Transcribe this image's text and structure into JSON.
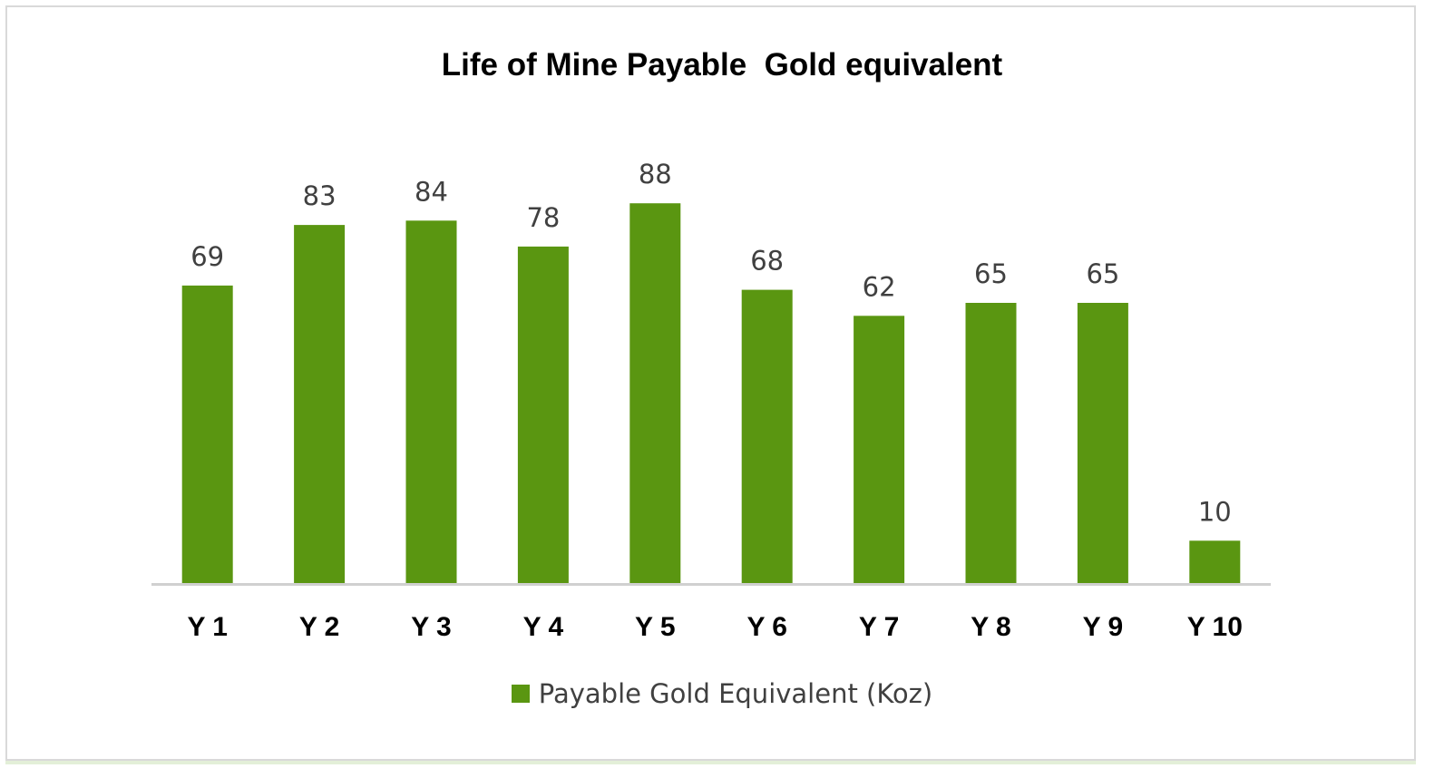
{
  "chart_data": {
    "type": "bar",
    "title": "Life of Mine Payable  Gold equivalent",
    "categories": [
      "Y 1",
      "Y 2",
      "Y 3",
      "Y 4",
      "Y 5",
      "Y 6",
      "Y 7",
      "Y 8",
      "Y 9",
      "Y 10"
    ],
    "series": [
      {
        "name": "Payable Gold Equivalent (Koz)",
        "values": [
          69,
          83,
          84,
          78,
          88,
          68,
          62,
          65,
          65,
          10
        ],
        "color": "#5a9611"
      }
    ],
    "xlabel": "",
    "ylabel": "",
    "ylim": [
      0,
      94
    ],
    "grid": false,
    "y_axis_visible": false,
    "data_labels": true,
    "legend_position": "bottom"
  }
}
